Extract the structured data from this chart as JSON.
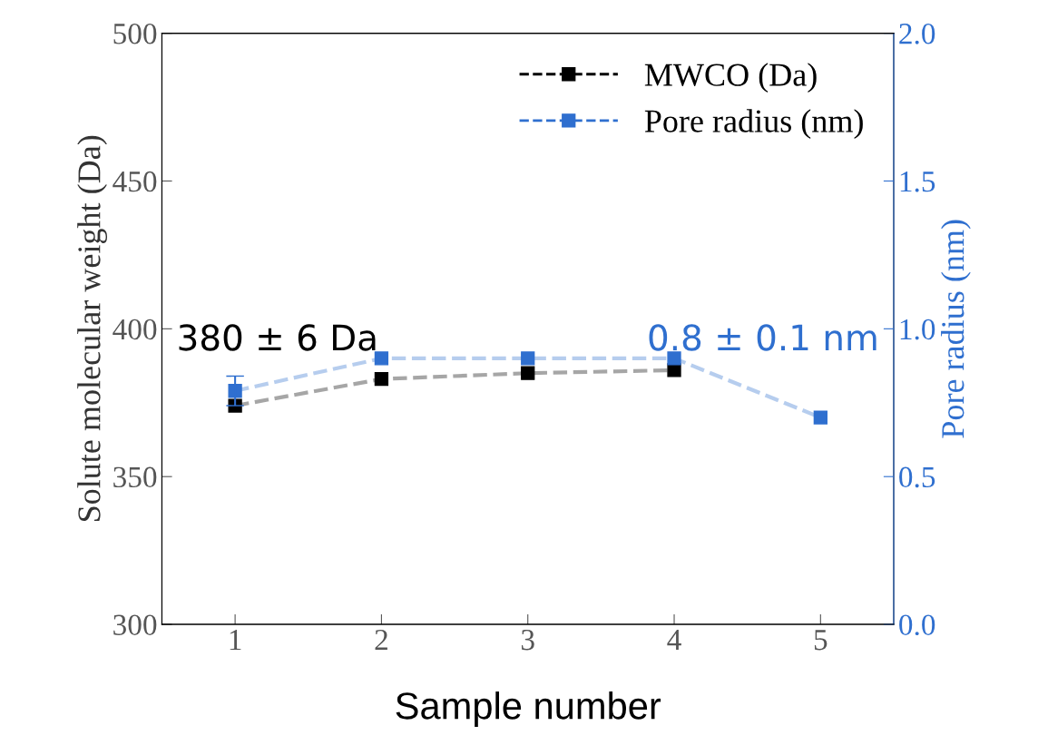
{
  "chart_data": {
    "type": "line",
    "xlabel": "Sample number",
    "ylabel": "Solute molecular weight (Da)",
    "y2label": "Pore radius (nm)",
    "x": [
      1,
      2,
      3,
      4,
      5
    ],
    "xlim": [
      0.5,
      5.5
    ],
    "xticks": [
      1,
      2,
      3,
      4,
      5
    ],
    "ylim": [
      300,
      500
    ],
    "yticks": [
      300,
      350,
      400,
      450,
      500
    ],
    "y2lim": [
      0.0,
      2.0
    ],
    "y2ticks": [
      {
        "value": 0,
        "label": "0.0"
      },
      0.5,
      {
        "value": 1,
        "label": "1.0"
      },
      1.5,
      {
        "value": 2,
        "label": "2.0"
      }
    ],
    "series": [
      {
        "name": "MWCO (Da)",
        "color": "#000000",
        "values": [
          374,
          383,
          385,
          386,
          null
        ]
      },
      {
        "name": "Pore radius (nm)",
        "color": "#2f6fcf",
        "axis": "y2",
        "values": [
          0.79,
          0.9,
          0.9,
          0.9,
          0.7
        ],
        "errors": [
          0.05,
          null,
          null,
          null,
          null
        ]
      }
    ],
    "annotations": [
      "380 ± 6 Da",
      "0.8 ± 0.1 nm"
    ],
    "marker": "square",
    "line_style": "dashed",
    "legend": "top right",
    "grid": false
  }
}
